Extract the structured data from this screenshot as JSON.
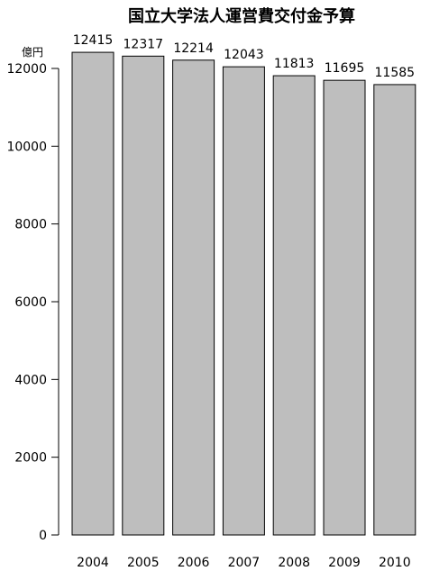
{
  "chart_data": {
    "type": "bar",
    "title": "国立大学法人運営費交付金予算",
    "ylabel": "億円",
    "xlabel": "",
    "categories": [
      "2004",
      "2005",
      "2006",
      "2007",
      "2008",
      "2009",
      "2010"
    ],
    "values": [
      12415,
      12317,
      12214,
      12043,
      11813,
      11695,
      11585
    ],
    "ylim": [
      0,
      12415
    ],
    "yticks": [
      0,
      2000,
      4000,
      6000,
      8000,
      10000,
      12000
    ],
    "data_labels": [
      "12415",
      "12317",
      "12214",
      "12043",
      "11813",
      "11695",
      "11585"
    ],
    "grid": false,
    "legend": "none",
    "colors": {
      "bar_fill": "#bebebe",
      "bar_stroke": "#000000",
      "axis": "#000000"
    }
  }
}
